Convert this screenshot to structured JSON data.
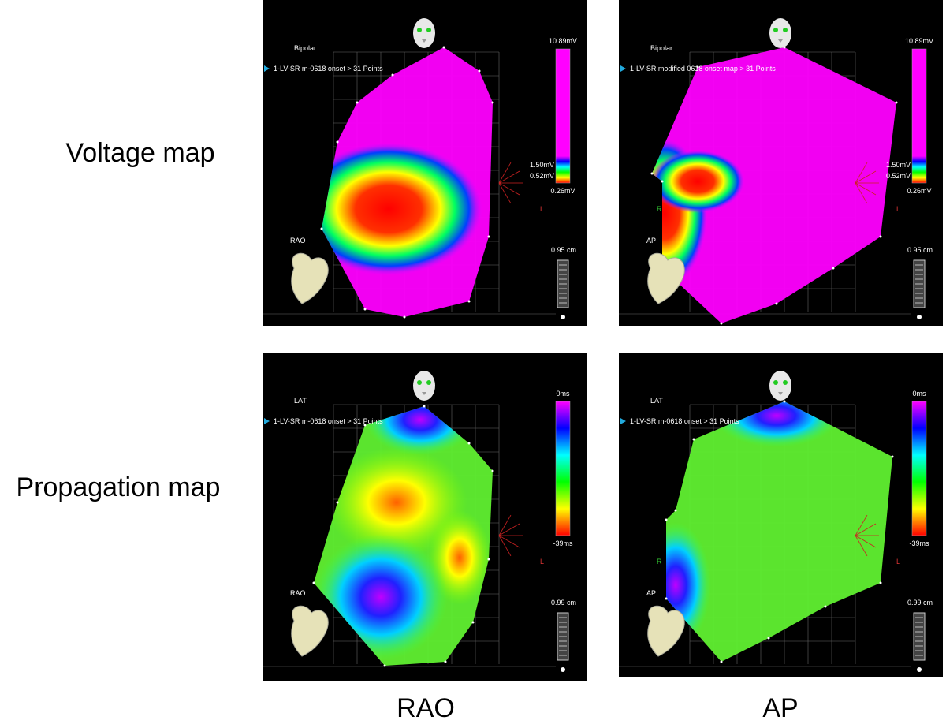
{
  "row_labels": [
    "Voltage map",
    "Propagation map"
  ],
  "column_labels": [
    "RAO",
    "AP"
  ],
  "panels": [
    {
      "kind": "voltage",
      "mode": "Bipolar",
      "map_name": "1-LV-SR m-0618 onset > 31 Points",
      "scale_top": "10.89mV",
      "scale_marks": [
        "1.50mV",
        "0.52mV"
      ],
      "scale_bottom": "0.26mV",
      "view": "RAO",
      "distance": "0.95 cm",
      "axis_labels": [
        "L"
      ]
    },
    {
      "kind": "voltage",
      "mode": "Bipolar",
      "map_name": "1-LV-SR modified 0618 onset map > 31 Points",
      "scale_top": "10.89mV",
      "scale_marks": [
        "1.50mV",
        "0.52mV"
      ],
      "scale_bottom": "0.26mV",
      "view": "AP",
      "distance": "0.95 cm",
      "axis_labels": [
        "R",
        "L"
      ]
    },
    {
      "kind": "propagation",
      "mode": "LAT",
      "map_name": "1-LV-SR m-0618 onset > 31 Points",
      "scale_top": "0ms",
      "scale_bottom": "-39ms",
      "view": "RAO",
      "distance": "0.99 cm",
      "axis_labels": [
        "L"
      ]
    },
    {
      "kind": "propagation",
      "mode": "LAT",
      "map_name": "1-LV-SR m-0618 onset > 31 Points",
      "scale_top": "0ms",
      "scale_bottom": "-39ms",
      "view": "AP",
      "distance": "0.99 cm",
      "axis_labels": [
        "R",
        "L"
      ]
    }
  ]
}
